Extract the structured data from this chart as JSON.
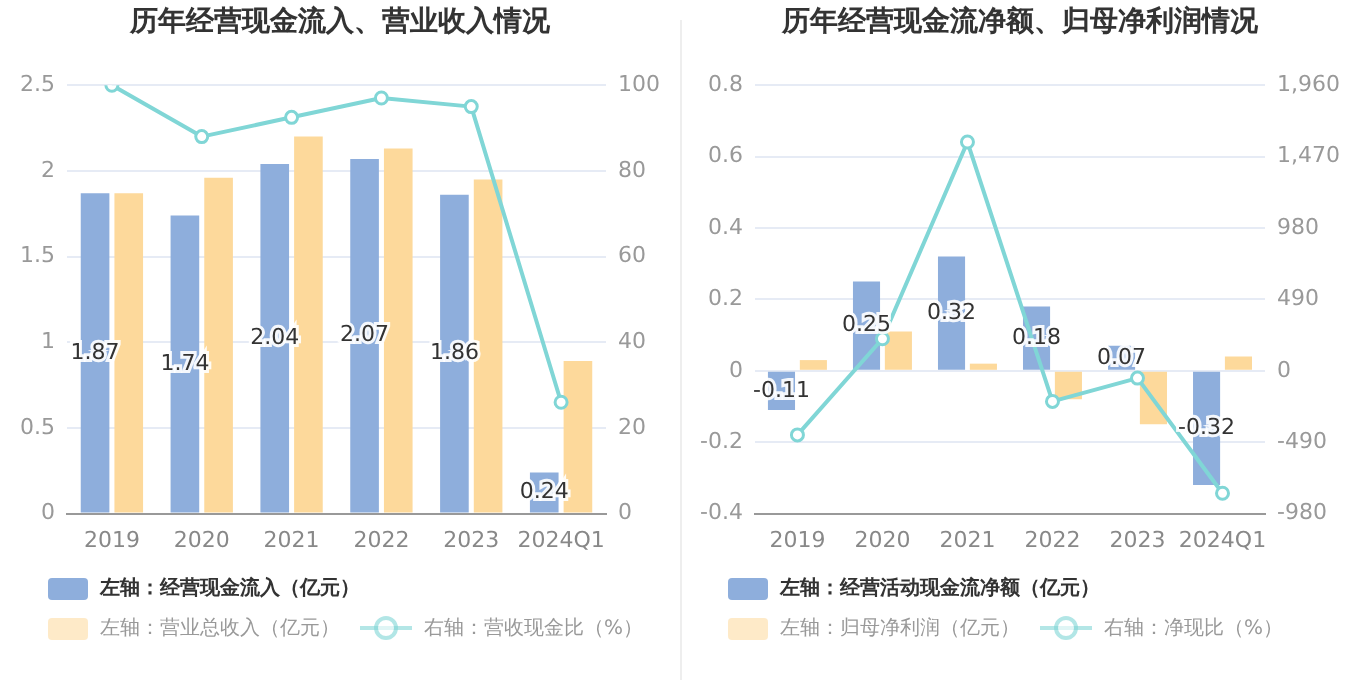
{
  "chart_data": [
    {
      "type": "bar",
      "title": "历年经营现金流入、营业收入情况",
      "categories": [
        "2019",
        "2020",
        "2021",
        "2022",
        "2023",
        "2024Q1"
      ],
      "series": [
        {
          "name": "左轴：经营现金流入（亿元）",
          "axis": "y",
          "color": "#8eaedc",
          "values": [
            1.87,
            1.74,
            2.04,
            2.07,
            1.86,
            0.24
          ],
          "value_labels": [
            "1.87",
            "1.74",
            "2.04",
            "2.07",
            "1.86",
            "0.24"
          ]
        },
        {
          "name": "左轴：营业总收入（亿元）",
          "axis": "y",
          "color": "#fdd99b",
          "values": [
            1.87,
            1.96,
            2.2,
            2.13,
            1.95,
            0.89
          ]
        },
        {
          "name": "右轴：营收现金比（%）",
          "type": "line",
          "axis": "y2",
          "color": "#80d6d6",
          "values": [
            100,
            88,
            92.5,
            97,
            95,
            26
          ]
        }
      ],
      "ylim": [
        0,
        2.5
      ],
      "yticks": [
        0,
        0.5,
        1,
        1.5,
        2,
        2.5
      ],
      "y2lim": [
        0,
        100
      ],
      "y2ticks": [
        0,
        20,
        40,
        60,
        80,
        100
      ],
      "grid": "y",
      "legend": "bottom",
      "marker": "circle"
    },
    {
      "type": "bar",
      "title": "历年经营现金流净额、归母净利润情况",
      "categories": [
        "2019",
        "2020",
        "2021",
        "2022",
        "2023",
        "2024Q1"
      ],
      "series": [
        {
          "name": "左轴：经营活动现金流净额（亿元）",
          "axis": "y",
          "color": "#8eaedc",
          "values": [
            -0.11,
            0.25,
            0.32,
            0.18,
            0.07,
            -0.32
          ],
          "value_labels": [
            "-0.11",
            "0.25",
            "0.32",
            "0.18",
            "0.07",
            "-0.32"
          ]
        },
        {
          "name": "左轴：归母净利润（亿元）",
          "axis": "y",
          "color": "#fdd99b",
          "values": [
            0.03,
            0.11,
            0.02,
            -0.08,
            -0.15,
            0.04
          ]
        },
        {
          "name": "右轴：净现比（%）",
          "type": "line",
          "axis": "y2",
          "color": "#80d6d6",
          "values": [
            -440,
            220,
            1570,
            -210,
            -50,
            -840
          ]
        }
      ],
      "ylim": [
        -0.4,
        0.8
      ],
      "yticks": [
        -0.4,
        -0.2,
        0,
        0.2,
        0.4,
        0.6,
        0.8
      ],
      "y2lim": [
        -980,
        1960
      ],
      "y2ticks": [
        {
          "value": -980,
          "label": "-980"
        },
        {
          "value": -490,
          "label": "-490"
        },
        0,
        {
          "value": 490,
          "label": "490"
        },
        {
          "value": 980,
          "label": "980"
        },
        {
          "value": 1470,
          "label": "1,470"
        },
        {
          "value": 1960,
          "label": "1,960"
        }
      ],
      "grid": "y",
      "legend": "bottom",
      "marker": "circle"
    }
  ]
}
